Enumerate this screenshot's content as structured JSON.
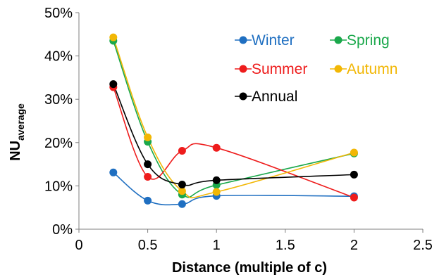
{
  "chart_data": {
    "type": "scatter",
    "xlabel": "Distance (multiple of c)",
    "ylabel_main": "NU",
    "ylabel_sub": "average",
    "xlim": [
      0,
      2.5
    ],
    "ylim": [
      0,
      50
    ],
    "xticks": [
      0,
      0.5,
      1,
      1.5,
      2,
      2.5
    ],
    "xtick_labels": [
      "0",
      "0.5",
      "1",
      "1.5",
      "2",
      "2.5"
    ],
    "yticks": [
      0,
      10,
      20,
      30,
      40,
      50
    ],
    "ytick_labels": [
      "0%",
      "10%",
      "20%",
      "30%",
      "40%",
      "50%"
    ],
    "grid": false,
    "smooth_lines": true,
    "legend_position": "top-right",
    "x": [
      0.25,
      0.5,
      0.75,
      1,
      2
    ],
    "series": [
      {
        "name": "Winter",
        "color": "#1f6fc1",
        "values": [
          13.1,
          6.6,
          5.8,
          7.7,
          7.6
        ]
      },
      {
        "name": "Spring",
        "color": "#1aa84b",
        "values": [
          43.5,
          20.2,
          8.0,
          10.2,
          17.5
        ]
      },
      {
        "name": "Summer",
        "color": "#ee1c1c",
        "values": [
          32.8,
          12.1,
          18.1,
          18.8,
          7.3
        ]
      },
      {
        "name": "Autumn",
        "color": "#f2b705",
        "values": [
          44.3,
          21.2,
          8.8,
          8.6,
          17.7
        ]
      },
      {
        "name": "Annual",
        "color": "#000000",
        "values": [
          33.5,
          15.0,
          10.3,
          11.3,
          12.6
        ]
      }
    ]
  }
}
